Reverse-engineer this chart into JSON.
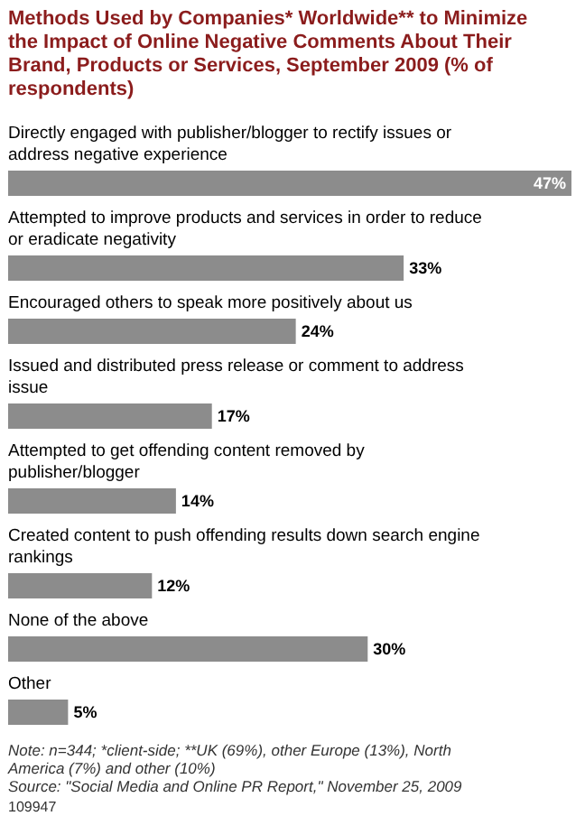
{
  "chart_data": {
    "type": "bar",
    "orientation": "horizontal",
    "title": "Methods Used by Companies* Worldwide** to Minimize the Impact of Online Negative Comments About Their Brand, Products or Services, September 2009 (% of respondents)",
    "categories": [
      "Directly engaged with publisher/blogger to rectify issues or address negative experience",
      "Attempted to improve products and services in order to reduce or eradicate negativity",
      "Encouraged others to speak more positively about us",
      "Issued and distributed press release or comment to address issue",
      "Attempted to get offending content removed by publisher/blogger",
      "Created content to push offending results down search engine rankings",
      "None of the above",
      "Other"
    ],
    "values": [
      47,
      33,
      24,
      17,
      14,
      12,
      30,
      5
    ],
    "value_labels": [
      "47%",
      "33%",
      "24%",
      "17%",
      "14%",
      "12%",
      "30%",
      "5%"
    ],
    "color": "#8c8c8c",
    "annotations": [
      "Note: n=344; *client-side; **UK (69%), other Europe (13%), North America (7%) and other (10%)",
      "Source: \"Social Media and Online PR Report,\" November 25, 2009",
      "109947"
    ]
  }
}
